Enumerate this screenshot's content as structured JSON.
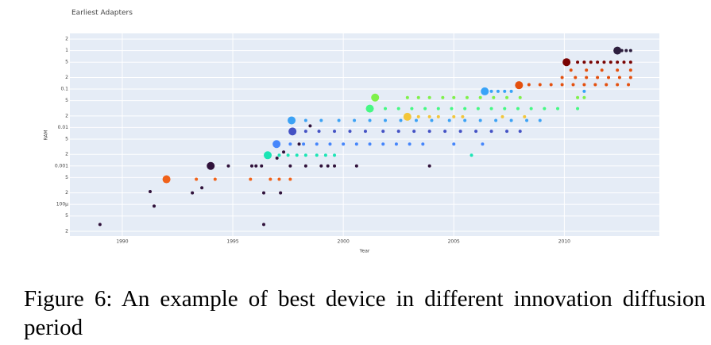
{
  "chart_data": {
    "type": "scatter",
    "title": "Earliest Adapters",
    "xlabel": "Year",
    "ylabel": "RAM",
    "log_y": true,
    "grid": true,
    "xlim": [
      1987.63,
      2014.3
    ],
    "xticks": [
      1990,
      1995,
      2000,
      2005,
      2010
    ],
    "ylim": [
      1.5e-05,
      2.8
    ],
    "yticks": [
      2,
      1,
      {
        "value": 0.5,
        "label": "5"
      },
      {
        "value": 0.2,
        "label": "2"
      },
      0.1,
      {
        "value": 0.05,
        "label": "5"
      },
      {
        "value": 0.02,
        "label": "2"
      },
      0.01,
      {
        "value": 0.005,
        "label": "5"
      },
      {
        "value": 0.002,
        "label": "2"
      },
      0.001,
      {
        "value": 0.0005,
        "label": "5"
      },
      {
        "value": 0.0002,
        "label": "2"
      },
      {
        "value": 0.0001,
        "label": "100µ"
      },
      {
        "value": 5e-05,
        "label": "5"
      },
      {
        "value": 2e-05,
        "label": "2"
      }
    ],
    "series": [
      {
        "color": "#2d1e3e",
        "x": [
          2012.4,
          2012.6,
          2012.8,
          2013.0
        ],
        "values": [
          1,
          1,
          1,
          1
        ]
      },
      {
        "color": "#7a0403",
        "x": [
          2010.1,
          2010.6,
          2010.9,
          2011.2,
          2011.5,
          2011.8,
          2012.1,
          2012.4,
          2012.7,
          2013.0
        ],
        "values": [
          0.5,
          0.5,
          0.5,
          0.5,
          0.5,
          0.5,
          0.5,
          0.5,
          0.5,
          0.5
        ]
      },
      {
        "color": "#e4500e",
        "x": [
          2007.95,
          2008.4,
          2008.9,
          2009.4,
          2009.9,
          2010.4,
          2010.9,
          2011.4,
          2011.9,
          2012.4,
          2012.9,
          2009.9,
          2010.5,
          2011.0,
          2011.5,
          2012.0,
          2012.5,
          2013.0,
          2010.3,
          2011.0,
          2011.7,
          2012.4,
          2013.0
        ],
        "values": [
          0.126,
          0.13,
          0.13,
          0.13,
          0.13,
          0.13,
          0.13,
          0.13,
          0.13,
          0.13,
          0.13,
          0.2,
          0.2,
          0.2,
          0.2,
          0.2,
          0.2,
          0.2,
          0.31,
          0.31,
          0.31,
          0.31,
          0.31
        ]
      },
      {
        "color": "#38a3f8",
        "x": [
          2006.4,
          2006.7,
          2007.0,
          2007.3,
          2007.6,
          2010.9
        ],
        "values": [
          0.087,
          0.087,
          0.087,
          0.087,
          0.087,
          0.087
        ]
      },
      {
        "color": "#7ff04a",
        "x": [
          2001.44,
          2002.9,
          2003.4,
          2003.9,
          2004.5,
          2005.0,
          2005.6,
          2006.2,
          2006.8,
          2007.4,
          2008.0,
          2010.6,
          2010.9
        ],
        "values": [
          0.06,
          0.06,
          0.06,
          0.06,
          0.06,
          0.06,
          0.06,
          0.06,
          0.06,
          0.06,
          0.06,
          0.06,
          0.06
        ]
      },
      {
        "color": "#46f884",
        "x": [
          2001.2,
          2001.9,
          2002.5,
          2003.1,
          2003.7,
          2004.3,
          2004.9,
          2005.5,
          2006.1,
          2006.7,
          2007.3,
          2007.9,
          2008.5,
          2009.1,
          2009.7,
          2010.6
        ],
        "values": [
          0.031,
          0.031,
          0.031,
          0.031,
          0.031,
          0.031,
          0.031,
          0.031,
          0.031,
          0.031,
          0.031,
          0.031,
          0.031,
          0.031,
          0.031,
          0.031
        ]
      },
      {
        "color": "#f3c63a",
        "x": [
          2002.9,
          2003.4,
          2003.9,
          2004.3,
          2005.0,
          2005.4,
          2007.2,
          2008.2
        ],
        "values": [
          0.019,
          0.019,
          0.019,
          0.019,
          0.019,
          0.019,
          0.019,
          0.019
        ]
      },
      {
        "color": "#3ca2f5",
        "x": [
          1997.66,
          1998.3,
          1999.0,
          1999.8,
          2000.5,
          2001.2,
          2001.9,
          2002.6,
          2003.3,
          2004.0,
          2004.8,
          2005.5,
          2006.2,
          2006.9,
          2007.6,
          2008.3,
          2008.9
        ],
        "values": [
          0.0153,
          0.0153,
          0.0153,
          0.0153,
          0.0153,
          0.0153,
          0.0153,
          0.0153,
          0.0153,
          0.0153,
          0.0153,
          0.0153,
          0.0153,
          0.0153,
          0.0153,
          0.0153,
          0.0153
        ]
      },
      {
        "color": "#4452c4",
        "x": [
          1997.7,
          1998.3,
          1998.9,
          1999.6,
          2000.3,
          2001.0,
          2001.8,
          2002.5,
          2003.2,
          2003.9,
          2004.6,
          2005.3,
          2006.0,
          2006.7,
          2007.4,
          2008.0
        ],
        "values": [
          0.0079,
          0.008,
          0.008,
          0.008,
          0.008,
          0.008,
          0.008,
          0.008,
          0.008,
          0.008,
          0.008,
          0.008,
          0.008,
          0.008,
          0.008,
          0.008
        ]
      },
      {
        "color": "#4686fb",
        "x": [
          1996.98,
          1997.6,
          1998.2,
          1998.8,
          1999.4,
          2000.0,
          2000.6,
          2001.2,
          2001.8,
          2002.4,
          2003.0,
          2003.6,
          2005.0,
          2006.3
        ],
        "values": [
          0.0037,
          0.0037,
          0.0037,
          0.0037,
          0.0037,
          0.0037,
          0.0037,
          0.0037,
          0.0037,
          0.0037,
          0.0037,
          0.0037,
          0.0037,
          0.0037
        ]
      },
      {
        "color": "#1be5b5",
        "x": [
          1996.58,
          1997.1,
          1997.5,
          1997.9,
          1998.3,
          1998.8,
          1999.2,
          1999.6,
          2005.8
        ],
        "values": [
          0.0019,
          0.0019,
          0.0019,
          0.0019,
          0.0019,
          0.0019,
          0.0019,
          0.0019,
          0.0019
        ]
      },
      {
        "color": "#30123b",
        "x": [
          1994.0,
          1988.99,
          1991.26,
          1991.44,
          1993.17,
          1993.6,
          1994.8,
          1995.86,
          1996.05,
          1996.3,
          1996.4,
          1996.4,
          1997.16,
          1997.0,
          1997.3,
          1997.6,
          1998.0,
          1998.3,
          1998.5,
          1999.0,
          1999.3,
          1999.6,
          2000.6,
          2003.9
        ],
        "values": [
          0.001,
          3e-05,
          0.000215,
          9.06e-05,
          0.0002,
          0.00027,
          0.001,
          0.001,
          0.001,
          0.001,
          0.0002,
          3e-05,
          0.0002,
          0.0016,
          0.0023,
          0.001,
          0.0037,
          0.001,
          0.011,
          0.001,
          0.001,
          0.001,
          0.001,
          0.001
        ]
      },
      {
        "color": "#f0621a",
        "x": [
          1992.0,
          1993.35,
          1994.2,
          1995.8,
          1996.7,
          1997.1,
          1997.6
        ],
        "values": [
          0.00045,
          0.00045,
          0.00045,
          0.00045,
          0.00045,
          0.00045,
          0.00045
        ]
      }
    ]
  },
  "caption": "Figure 6: An example of best device in different innovation diffusion period"
}
